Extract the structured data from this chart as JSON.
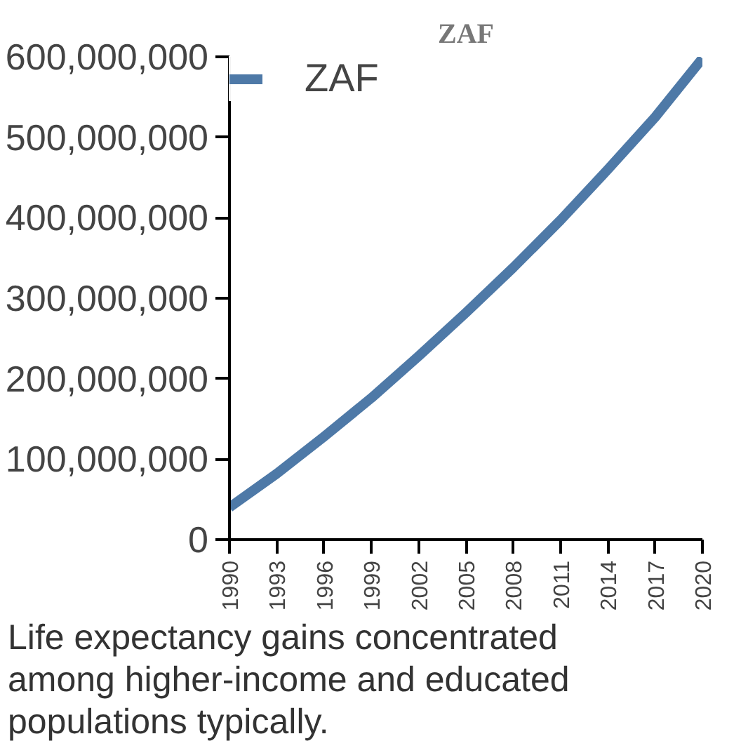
{
  "chart_data": {
    "type": "line",
    "title": "ZAF",
    "legend": "top",
    "x": [
      1990,
      1993,
      1996,
      1999,
      2002,
      2005,
      2008,
      2011,
      2014,
      2017,
      2020
    ],
    "series": [
      {
        "name": "ZAF",
        "color": "#4e79a7",
        "values": [
          40000000,
          82000000,
          128000000,
          176000000,
          228000000,
          282000000,
          338000000,
          397000000,
          460000000,
          525000000,
          598000000
        ]
      }
    ],
    "xlim": [
      1990,
      2020
    ],
    "xticks": [
      1990,
      1993,
      1996,
      1999,
      2002,
      2005,
      2008,
      2011,
      2014,
      2017,
      2020
    ],
    "ylim": [
      0,
      600000000
    ],
    "yticks": [
      {
        "value": 0,
        "label": "0"
      },
      {
        "value": 100000000,
        "label": "100,000,000"
      },
      {
        "value": 200000000,
        "label": "200,000,000"
      },
      {
        "value": 300000000,
        "label": "300,000,000"
      },
      {
        "value": 400000000,
        "label": "400,000,000"
      },
      {
        "value": 500000000,
        "label": "500,000,000"
      },
      {
        "value": 600000000,
        "label": "600,000,000"
      }
    ],
    "grid": false,
    "annotations": [
      "Life expectancy gains concentrated among higher-income and educated populations typically."
    ]
  }
}
